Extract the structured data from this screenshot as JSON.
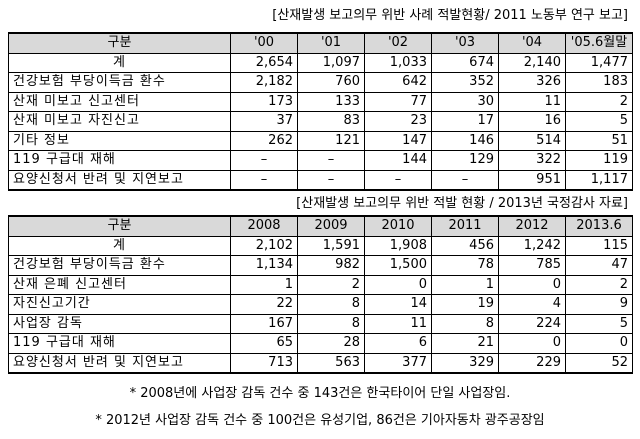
{
  "tables": [
    {
      "title": "[산재발생 보고의무 위반 사례 적발현황/ 2011 노동부 연구 보고]",
      "header": [
        "구분",
        "'00",
        "'01",
        "'02",
        "'03",
        "'04",
        "'05.6월말"
      ],
      "rows": [
        [
          "계",
          "2,654",
          "1,097",
          "1,033",
          "674",
          "2,140",
          "1,477"
        ],
        [
          "건강보험 부당이득금 환수",
          "2,182",
          "760",
          "642",
          "352",
          "326",
          "183"
        ],
        [
          "산재 미보고 신고센터",
          "173",
          "133",
          "77",
          "30",
          "11",
          "2"
        ],
        [
          "산재 미보고 자진신고",
          "37",
          "83",
          "23",
          "17",
          "16",
          "5"
        ],
        [
          "기타 정보",
          "262",
          "121",
          "147",
          "146",
          "514",
          "51"
        ],
        [
          "119 구급대 재해",
          "–",
          "–",
          "144",
          "129",
          "322",
          "119"
        ],
        [
          "요양신청서 반려 및 지연보고",
          "–",
          "–",
          "–",
          "–",
          "951",
          "1,117"
        ]
      ]
    },
    {
      "title": "[산재발생 보고의무 위반 적발 현황 / 2013년 국정감사 자료]",
      "header": [
        "구분",
        "2008",
        "2009",
        "2010",
        "2011",
        "2012",
        "2013.6"
      ],
      "rows": [
        [
          "계",
          "2,102",
          "1,591",
          "1,908",
          "456",
          "1,242",
          "115"
        ],
        [
          "건강보험 부당이득금 환수",
          "1,134",
          "982",
          "1,500",
          "78",
          "785",
          "47"
        ],
        [
          "산재 은폐 신고센터",
          "1",
          "2",
          "0",
          "1",
          "0",
          "2"
        ],
        [
          "자진신고기간",
          "22",
          "8",
          "14",
          "19",
          "4",
          "9"
        ],
        [
          "사업장 감독",
          "167",
          "8",
          "11",
          "8",
          "224",
          "5"
        ],
        [
          "119 구급대 재해",
          "65",
          "28",
          "6",
          "21",
          "0",
          "0"
        ],
        [
          "요양신청서 반려 및 지연보고",
          "713",
          "563",
          "377",
          "329",
          "229",
          "52"
        ]
      ]
    }
  ],
  "notes": [
    "* 2008년에 사업장 감독 건수 중 143건은 한국타이어 단일 사업장임.",
    "* 2012년 사업장 감독 건수 중 100건은 유성기업, 86건은 기아자동차 광주공장임"
  ]
}
